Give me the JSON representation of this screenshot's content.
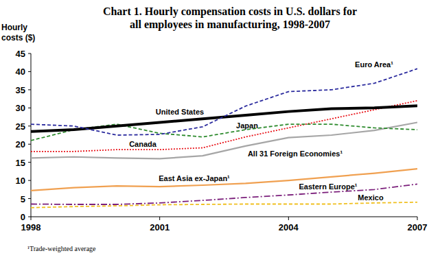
{
  "chart_data": {
    "type": "line",
    "title": "Chart 1. Hourly compensation costs in U.S. dollars for\nall employees in manufacturing, 1998-2007",
    "y_label": "Hourly\ncosts ($)",
    "annotations": [
      "¹Trade-weighted average"
    ],
    "x": [
      1998,
      1999,
      2000,
      2001,
      2002,
      2003,
      2004,
      2005,
      2006,
      2007
    ],
    "xlim": [
      1998,
      2007
    ],
    "xticks": [
      1998,
      2001,
      2004,
      2007
    ],
    "ylim": [
      0,
      45
    ],
    "yticks": [
      0,
      5,
      10,
      15,
      20,
      25,
      30,
      35,
      40,
      45
    ],
    "grid": false,
    "series": [
      {
        "name": "Euro Area¹",
        "color": "#2b2b9e",
        "line_style": "dashed",
        "values": [
          25.5,
          25.0,
          22.5,
          22.7,
          24.8,
          30.5,
          34.5,
          35.0,
          36.8,
          40.8
        ]
      },
      {
        "name": "United States",
        "color": "#000000",
        "line_style": "solid",
        "values": [
          23.5,
          24.0,
          25.0,
          26.0,
          27.0,
          28.0,
          29.0,
          29.8,
          30.0,
          30.6
        ]
      },
      {
        "name": "Japan",
        "color": "#2e8b2e",
        "line_style": "dashed",
        "values": [
          21.0,
          24.0,
          25.5,
          23.0,
          22.0,
          24.0,
          25.5,
          25.5,
          24.5,
          24.0
        ]
      },
      {
        "name": "Canada",
        "color": "#e8141a",
        "line_style": "dotted",
        "values": [
          18.0,
          18.0,
          18.5,
          18.5,
          19.0,
          22.0,
          24.5,
          27.0,
          29.5,
          32.0
        ]
      },
      {
        "name": "All 31 Foreign Economies¹",
        "color": "#a6a6a6",
        "line_style": "solid",
        "values": [
          16.2,
          16.5,
          16.2,
          16.0,
          16.8,
          19.5,
          21.8,
          22.5,
          23.8,
          26.0
        ]
      },
      {
        "name": "East Asia ex-Japan¹",
        "color": "#f0a050",
        "line_style": "solid",
        "values": [
          7.2,
          8.0,
          8.5,
          8.3,
          8.7,
          9.2,
          10.0,
          11.0,
          12.0,
          13.2
        ]
      },
      {
        "name": "Eastern Europe¹",
        "color": "#7b1f7b",
        "line_style": "dashdot",
        "values": [
          3.5,
          3.4,
          3.4,
          3.8,
          4.5,
          5.3,
          6.0,
          6.8,
          7.5,
          9.0
        ]
      },
      {
        "name": "Mexico",
        "color": "#f0c020",
        "line_style": "dashed",
        "values": [
          2.5,
          2.8,
          3.0,
          3.3,
          3.4,
          3.5,
          3.5,
          3.5,
          3.8,
          4.0
        ]
      }
    ]
  }
}
